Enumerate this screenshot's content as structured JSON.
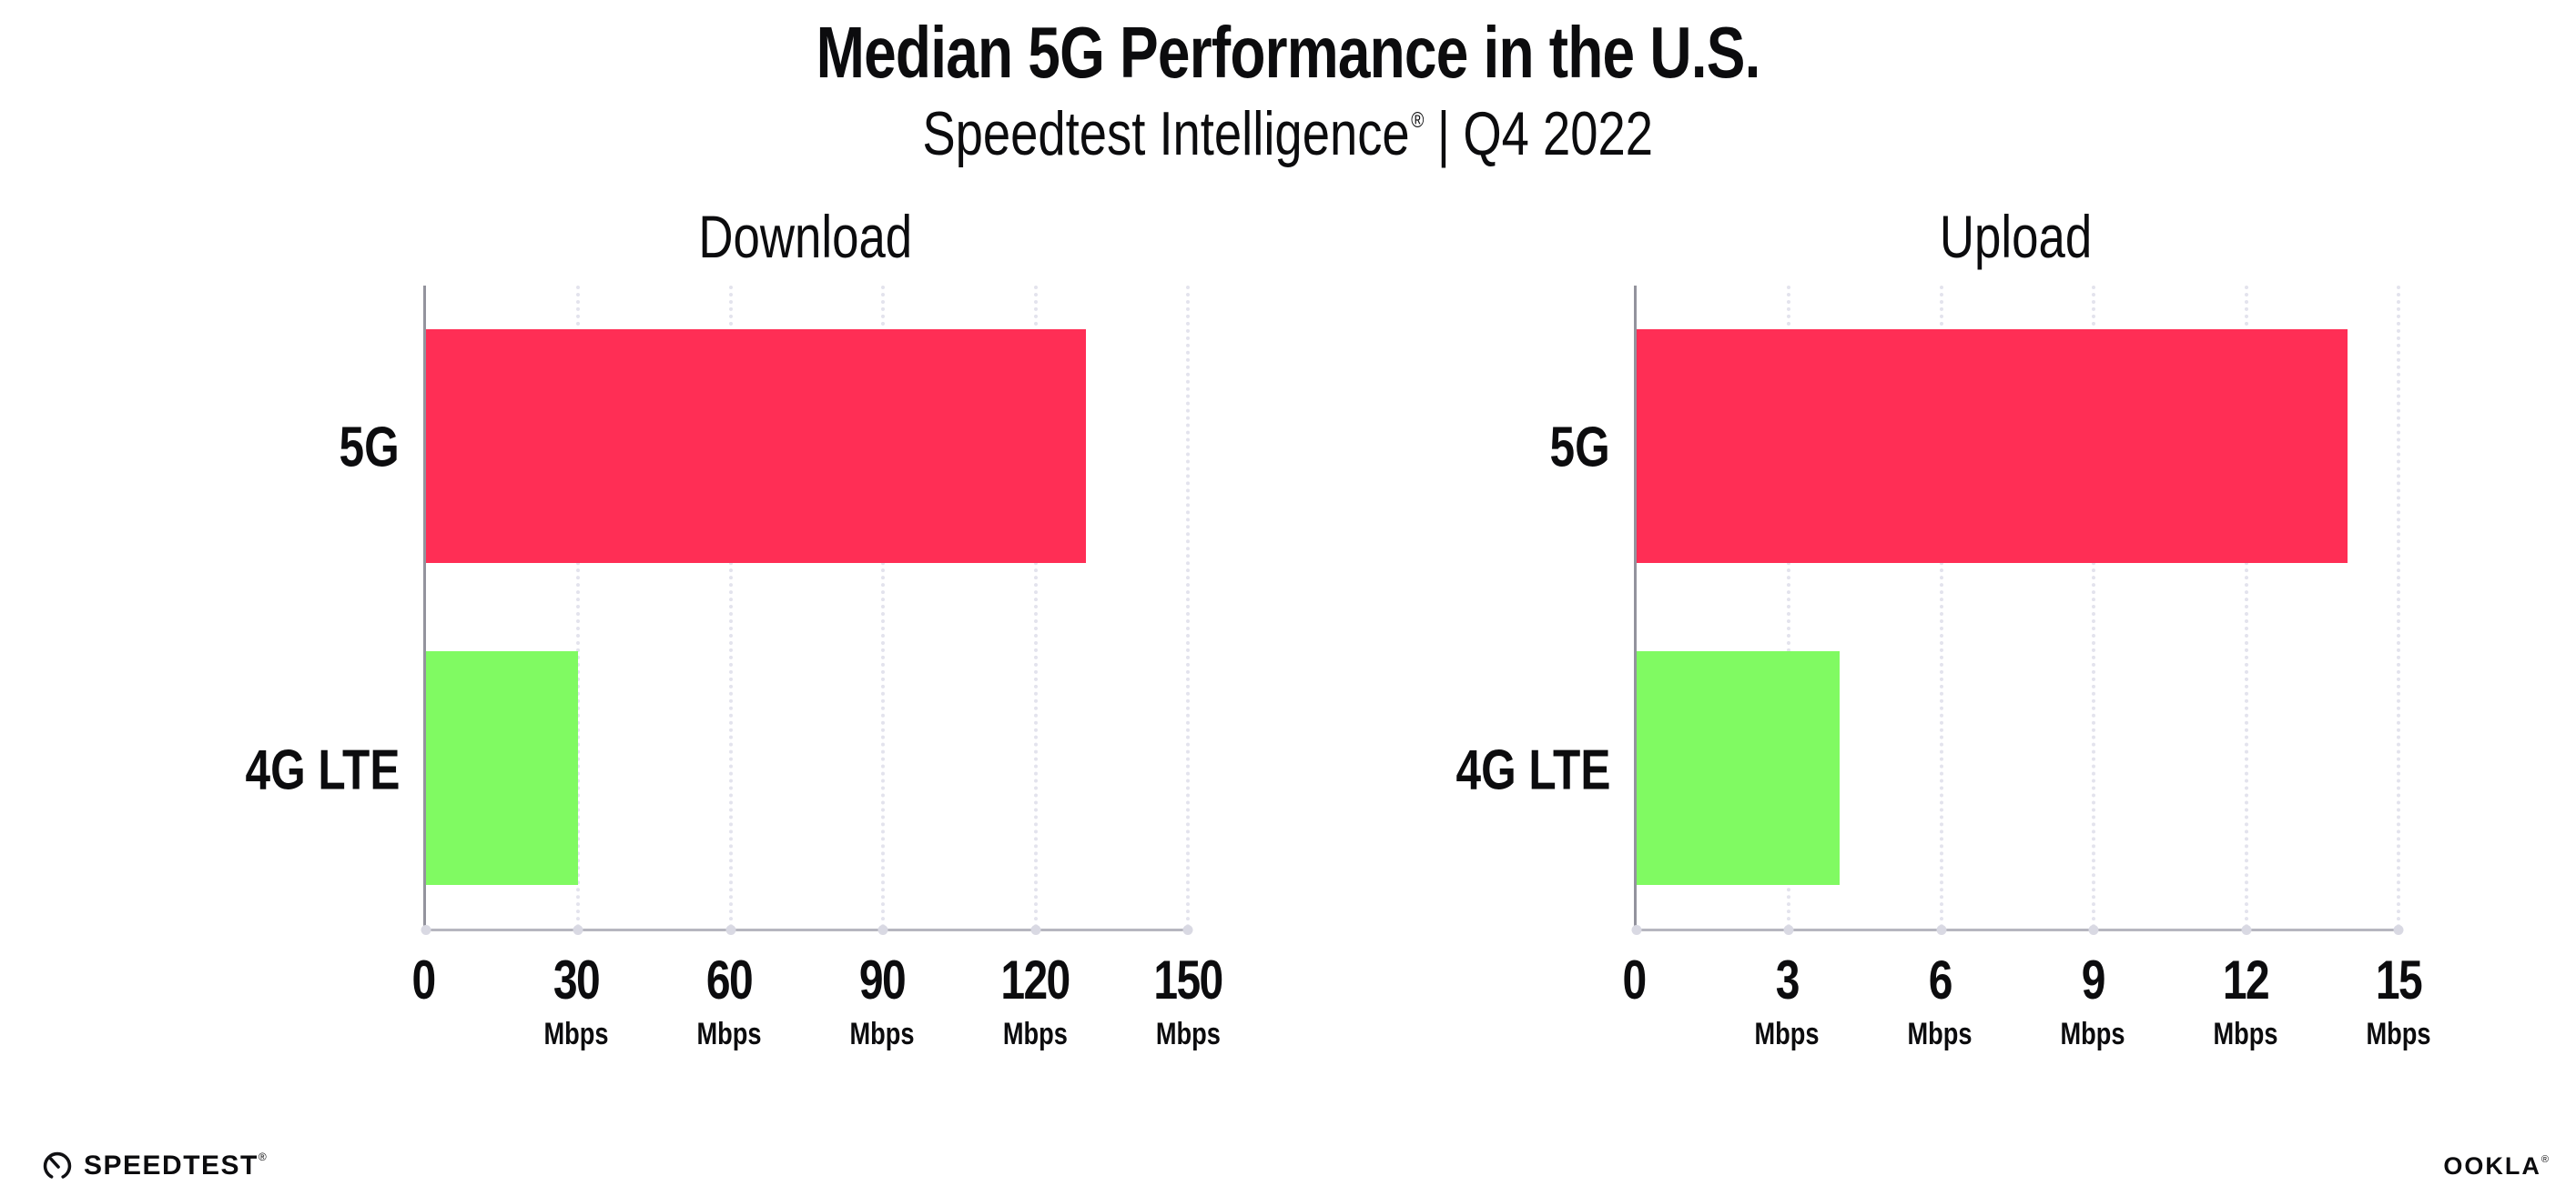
{
  "page": {
    "title": "Median 5G Performance in the U.S.",
    "subtitle": {
      "product": "Speedtest Intelligence",
      "registered": "®",
      "separator": "|",
      "period": "Q4 2022"
    }
  },
  "chart_data": [
    {
      "type": "bar",
      "orientation": "horizontal",
      "title": "Download",
      "categories": [
        "5G",
        "4G LTE"
      ],
      "values": [
        130,
        30
      ],
      "unit": "Mbps",
      "xlabel": "",
      "ylabel": "",
      "xlim": [
        0,
        150
      ],
      "xticks": [
        0,
        30,
        60,
        90,
        120,
        150
      ],
      "grid": "dotted-vertical",
      "legend": "none",
      "bar_colors": [
        "#ff2e55",
        "#80fa62"
      ]
    },
    {
      "type": "bar",
      "orientation": "horizontal",
      "title": "Upload",
      "categories": [
        "5G",
        "4G LTE"
      ],
      "values": [
        14,
        4
      ],
      "unit": "Mbps",
      "xlabel": "",
      "ylabel": "",
      "xlim": [
        0,
        15
      ],
      "xticks": [
        0,
        3,
        6,
        9,
        12,
        15
      ],
      "grid": "dotted-vertical",
      "legend": "none",
      "bar_colors": [
        "#ff2e55",
        "#80fa62"
      ]
    }
  ],
  "footer": {
    "speedtest_logo_text": "SPEEDTEST",
    "speedtest_registered": "®",
    "ookla_logo_text": "OOKLA",
    "ookla_registered": "®"
  },
  "colors": {
    "bar_5g": "#ff2e55",
    "bar_4g_lte": "#80fa62",
    "axis_left": "#93939d",
    "axis_bottom": "#b6b6bf",
    "gridline": "#e3e3ed",
    "text": "#0c0c0e"
  }
}
